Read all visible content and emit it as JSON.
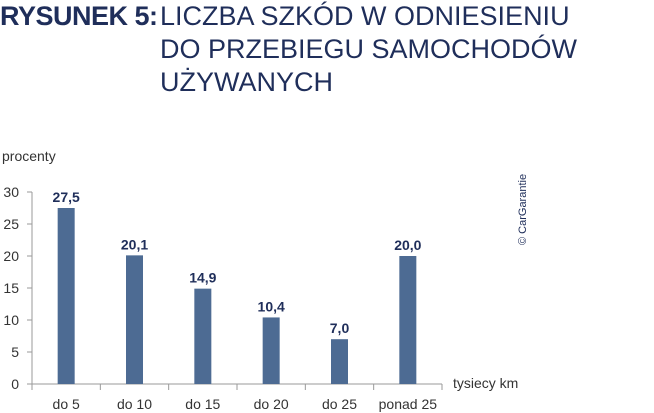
{
  "title": {
    "prefix": "RYSUNEK 5:",
    "lines": [
      "LICZBA SZKÓD W ODNIESIENIU",
      "DO PRZEBIEGU SAMOCHODÓW",
      "UŻYWANYCH"
    ]
  },
  "copyright": "© CarGarantie",
  "colors": {
    "bar": "#4d6b93",
    "title": "#1f2e5a",
    "axis": "#9a9a9a"
  },
  "chart_data": {
    "type": "bar",
    "categories": [
      "do 5",
      "do 10",
      "do 15",
      "do 20",
      "do 25",
      "ponad 25"
    ],
    "values": [
      27.5,
      20.1,
      14.9,
      10.4,
      7.0,
      20.0
    ],
    "value_labels": [
      "27,5",
      "20,1",
      "14,9",
      "10,4",
      "7,0",
      "20,0"
    ],
    "ylabel": "procenty",
    "xlabel": "tysiecy km",
    "ylim": [
      0,
      30
    ],
    "yticks": [
      0,
      5,
      10,
      15,
      20,
      25,
      30
    ],
    "grid": false
  }
}
